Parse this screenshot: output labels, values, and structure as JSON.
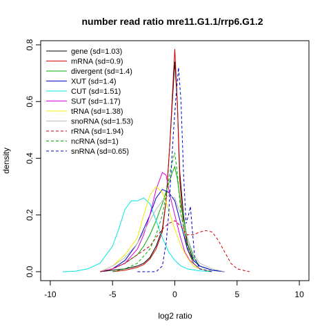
{
  "chart_data": {
    "type": "line",
    "title": "number read ratio mre11.G1.1/rrp6.G1.2",
    "xlabel": "log2 ratio",
    "ylabel": "density",
    "xlim": [
      -10,
      10
    ],
    "ylim": [
      0,
      0.8
    ],
    "xticks": [
      -10,
      -5,
      0,
      5,
      10
    ],
    "yticks": [
      0.0,
      0.2,
      0.4,
      0.6,
      0.8
    ],
    "xtick_labels": [
      "-10",
      "-5",
      "0",
      "5",
      "10"
    ],
    "ytick_labels": [
      "0.0",
      "0.2",
      "0.4",
      "0.6",
      "0.8"
    ],
    "grid": false,
    "legend_position": "top-left",
    "series": [
      {
        "name": "gene (sd=1.03)",
        "color": "#000000",
        "dash": "solid",
        "points": [
          [
            -6,
            0
          ],
          [
            -5,
            0.005
          ],
          [
            -4,
            0.01
          ],
          [
            -3,
            0.02
          ],
          [
            -2.5,
            0.03
          ],
          [
            -2,
            0.05
          ],
          [
            -1.5,
            0.09
          ],
          [
            -1,
            0.15
          ],
          [
            -0.7,
            0.25
          ],
          [
            -0.4,
            0.45
          ],
          [
            -0.2,
            0.6
          ],
          [
            0,
            0.74
          ],
          [
            0.2,
            0.6
          ],
          [
            0.4,
            0.35
          ],
          [
            0.7,
            0.2
          ],
          [
            1,
            0.1
          ],
          [
            1.5,
            0.04
          ],
          [
            2,
            0.02
          ],
          [
            3,
            0.005
          ],
          [
            4,
            0
          ]
        ]
      },
      {
        "name": "mRNA (sd=0.9)",
        "color": "#cc0000",
        "dash": "solid",
        "points": [
          [
            -5,
            0
          ],
          [
            -4,
            0.005
          ],
          [
            -3,
            0.015
          ],
          [
            -2.5,
            0.025
          ],
          [
            -2,
            0.045
          ],
          [
            -1.5,
            0.08
          ],
          [
            -1,
            0.14
          ],
          [
            -0.7,
            0.25
          ],
          [
            -0.4,
            0.45
          ],
          [
            -0.2,
            0.62
          ],
          [
            0,
            0.785
          ],
          [
            0.2,
            0.6
          ],
          [
            0.4,
            0.32
          ],
          [
            0.7,
            0.16
          ],
          [
            1,
            0.08
          ],
          [
            1.5,
            0.03
          ],
          [
            2,
            0.01
          ],
          [
            3,
            0
          ]
        ]
      },
      {
        "name": "divergent (sd=1.4)",
        "color": "#00aa00",
        "dash": "solid",
        "points": [
          [
            -6,
            0
          ],
          [
            -5,
            0.01
          ],
          [
            -4,
            0.03
          ],
          [
            -3,
            0.06
          ],
          [
            -2.5,
            0.09
          ],
          [
            -2,
            0.13
          ],
          [
            -1.5,
            0.18
          ],
          [
            -1,
            0.24
          ],
          [
            -0.5,
            0.31
          ],
          [
            -0.2,
            0.35
          ],
          [
            0,
            0.37
          ],
          [
            0.2,
            0.33
          ],
          [
            0.5,
            0.23
          ],
          [
            1,
            0.12
          ],
          [
            1.5,
            0.05
          ],
          [
            2,
            0.02
          ],
          [
            3,
            0.005
          ],
          [
            4,
            0
          ]
        ]
      },
      {
        "name": "XUT (sd=1.4)",
        "color": "#0000cc",
        "dash": "solid",
        "points": [
          [
            -6,
            0
          ],
          [
            -5,
            0.01
          ],
          [
            -4,
            0.04
          ],
          [
            -3,
            0.1
          ],
          [
            -2.5,
            0.15
          ],
          [
            -2,
            0.2
          ],
          [
            -1.5,
            0.26
          ],
          [
            -1,
            0.29
          ],
          [
            -0.5,
            0.28
          ],
          [
            0,
            0.25
          ],
          [
            0.3,
            0.2
          ],
          [
            0.6,
            0.15
          ],
          [
            1,
            0.08
          ],
          [
            1.5,
            0.04
          ],
          [
            2,
            0.02
          ],
          [
            3,
            0.005
          ],
          [
            4,
            0
          ]
        ]
      },
      {
        "name": "CUT (sd=1.51)",
        "color": "#00e5e5",
        "dash": "solid",
        "points": [
          [
            -9,
            0
          ],
          [
            -8,
            0.002
          ],
          [
            -7,
            0.01
          ],
          [
            -6,
            0.03
          ],
          [
            -5,
            0.09
          ],
          [
            -4.5,
            0.15
          ],
          [
            -4,
            0.22
          ],
          [
            -3.5,
            0.25
          ],
          [
            -3,
            0.25
          ],
          [
            -2.5,
            0.26
          ],
          [
            -2,
            0.24
          ],
          [
            -1.5,
            0.18
          ],
          [
            -1,
            0.12
          ],
          [
            -0.5,
            0.07
          ],
          [
            0,
            0.04
          ],
          [
            0.5,
            0.02
          ],
          [
            1,
            0.01
          ],
          [
            2,
            0.003
          ],
          [
            3,
            0
          ]
        ]
      },
      {
        "name": "SUT (sd=1.17)",
        "color": "#dd00dd",
        "dash": "solid",
        "points": [
          [
            -6,
            0
          ],
          [
            -5,
            0.01
          ],
          [
            -4,
            0.03
          ],
          [
            -3,
            0.08
          ],
          [
            -2.5,
            0.13
          ],
          [
            -2,
            0.2
          ],
          [
            -1.5,
            0.29
          ],
          [
            -1,
            0.35
          ],
          [
            -0.7,
            0.34
          ],
          [
            -0.4,
            0.27
          ],
          [
            0,
            0.2
          ],
          [
            0.4,
            0.13
          ],
          [
            0.8,
            0.07
          ],
          [
            1.2,
            0.04
          ],
          [
            2,
            0.01
          ],
          [
            3,
            0
          ]
        ]
      },
      {
        "name": "tRNA (sd=1.38)",
        "color": "#eeee00",
        "dash": "solid",
        "points": [
          [
            -6,
            0
          ],
          [
            -5,
            0.02
          ],
          [
            -4,
            0.06
          ],
          [
            -3,
            0.12
          ],
          [
            -2.5,
            0.2
          ],
          [
            -2,
            0.27
          ],
          [
            -1.5,
            0.3
          ],
          [
            -1,
            0.28
          ],
          [
            -0.5,
            0.22
          ],
          [
            0,
            0.15
          ],
          [
            0.5,
            0.09
          ],
          [
            1,
            0.05
          ],
          [
            1.5,
            0.02
          ],
          [
            2,
            0.01
          ],
          [
            3,
            0
          ]
        ]
      },
      {
        "name": "snoRNA (sd=1.53)",
        "color": "#bbbbbb",
        "dash": "solid",
        "points": [
          [
            -6,
            0
          ],
          [
            -5,
            0.02
          ],
          [
            -4,
            0.05
          ],
          [
            -3,
            0.1
          ],
          [
            -2.5,
            0.14
          ],
          [
            -2,
            0.18
          ],
          [
            -1.5,
            0.22
          ],
          [
            -1,
            0.25
          ],
          [
            -0.5,
            0.27
          ],
          [
            0,
            0.26
          ],
          [
            0.5,
            0.2
          ],
          [
            1,
            0.12
          ],
          [
            1.5,
            0.06
          ],
          [
            2,
            0.03
          ],
          [
            3,
            0.01
          ],
          [
            4,
            0
          ]
        ]
      },
      {
        "name": "rRNA (sd=1.94)",
        "color": "#cc0000",
        "dash": "dashed",
        "points": [
          [
            -6,
            0
          ],
          [
            -5,
            0.01
          ],
          [
            -4,
            0.03
          ],
          [
            -3,
            0.06
          ],
          [
            -2,
            0.09
          ],
          [
            -1.5,
            0.12
          ],
          [
            -1,
            0.15
          ],
          [
            -0.5,
            0.17
          ],
          [
            0,
            0.18
          ],
          [
            0.5,
            0.16
          ],
          [
            1,
            0.13
          ],
          [
            1.5,
            0.13
          ],
          [
            2,
            0.14
          ],
          [
            2.5,
            0.145
          ],
          [
            3,
            0.14
          ],
          [
            3.5,
            0.11
          ],
          [
            4,
            0.07
          ],
          [
            4.5,
            0.03
          ],
          [
            5,
            0.01
          ],
          [
            6,
            0
          ]
        ]
      },
      {
        "name": "ncRNA (sd=1)",
        "color": "#00aa00",
        "dash": "dashed",
        "points": [
          [
            -5,
            0
          ],
          [
            -4,
            0.01
          ],
          [
            -3,
            0.03
          ],
          [
            -2,
            0.08
          ],
          [
            -1.5,
            0.13
          ],
          [
            -1,
            0.2
          ],
          [
            -0.6,
            0.3
          ],
          [
            -0.3,
            0.37
          ],
          [
            0,
            0.42
          ],
          [
            0.2,
            0.35
          ],
          [
            0.5,
            0.2
          ],
          [
            1,
            0.09
          ],
          [
            1.5,
            0.03
          ],
          [
            2,
            0.01
          ],
          [
            3,
            0
          ]
        ]
      },
      {
        "name": "snRNA (sd=0.65)",
        "color": "#0000cc",
        "dash": "dashed",
        "points": [
          [
            -3,
            0
          ],
          [
            -1.5,
            0
          ],
          [
            -1,
            0.02
          ],
          [
            -0.7,
            0.1
          ],
          [
            -0.5,
            0.2
          ],
          [
            -0.3,
            0.35
          ],
          [
            -0.1,
            0.5
          ],
          [
            0.1,
            0.62
          ],
          [
            0.3,
            0.72
          ],
          [
            0.5,
            0.6
          ],
          [
            0.7,
            0.35
          ],
          [
            0.9,
            0.17
          ],
          [
            1.1,
            0.2
          ],
          [
            1.25,
            0.23
          ],
          [
            1.4,
            0.15
          ],
          [
            1.6,
            0.05
          ],
          [
            2,
            0.01
          ],
          [
            3,
            0
          ]
        ]
      }
    ]
  }
}
